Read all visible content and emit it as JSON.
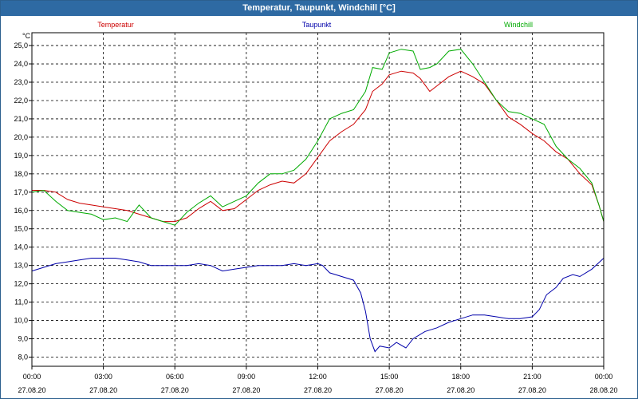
{
  "chart_data": {
    "type": "line",
    "title": "Temperatur, Taupunkt, Windchill [°C]",
    "ylabel": "°C",
    "xlabel": "",
    "ylim": [
      7.5,
      25.7
    ],
    "xlim": [
      0,
      24
    ],
    "grid": true,
    "y_ticks": [
      "8,0",
      "9,0",
      "10,0",
      "11,0",
      "12,0",
      "13,0",
      "14,0",
      "15,0",
      "16,0",
      "17,0",
      "18,0",
      "19,0",
      "20,0",
      "21,0",
      "22,0",
      "23,0",
      "24,0",
      "25,0"
    ],
    "x_ticks": [
      {
        "time": "00:00",
        "date": "27.08.20"
      },
      {
        "time": "03:00",
        "date": "27.08.20"
      },
      {
        "time": "06:00",
        "date": "27.08.20"
      },
      {
        "time": "09:00",
        "date": "27.08.20"
      },
      {
        "time": "12:00",
        "date": "27.08.20"
      },
      {
        "time": "15:00",
        "date": "27.08.20"
      },
      {
        "time": "18:00",
        "date": "27.08.20"
      },
      {
        "time": "21:00",
        "date": "27.08.20"
      },
      {
        "time": "00:00",
        "date": "28.08.20"
      }
    ],
    "series": [
      {
        "name": "Temperatur",
        "color": "#cc0000",
        "points": [
          [
            0,
            17.1
          ],
          [
            0.5,
            17.1
          ],
          [
            1,
            17.0
          ],
          [
            1.5,
            16.6
          ],
          [
            2,
            16.4
          ],
          [
            2.5,
            16.3
          ],
          [
            3,
            16.2
          ],
          [
            3.5,
            16.1
          ],
          [
            4,
            16.0
          ],
          [
            4.5,
            15.8
          ],
          [
            5,
            15.6
          ],
          [
            5.5,
            15.4
          ],
          [
            6,
            15.4
          ],
          [
            6.5,
            15.6
          ],
          [
            7,
            16.1
          ],
          [
            7.5,
            16.5
          ],
          [
            8,
            16.0
          ],
          [
            8.5,
            16.1
          ],
          [
            9,
            16.6
          ],
          [
            9.5,
            17.1
          ],
          [
            10,
            17.4
          ],
          [
            10.5,
            17.6
          ],
          [
            11,
            17.5
          ],
          [
            11.5,
            18.0
          ],
          [
            12,
            18.9
          ],
          [
            12.5,
            19.8
          ],
          [
            13,
            20.3
          ],
          [
            13.5,
            20.7
          ],
          [
            14,
            21.5
          ],
          [
            14.3,
            22.5
          ],
          [
            14.7,
            22.9
          ],
          [
            15,
            23.4
          ],
          [
            15.5,
            23.6
          ],
          [
            16,
            23.5
          ],
          [
            16.3,
            23.2
          ],
          [
            16.7,
            22.5
          ],
          [
            17,
            22.8
          ],
          [
            17.5,
            23.3
          ],
          [
            18,
            23.6
          ],
          [
            18.5,
            23.3
          ],
          [
            19,
            22.9
          ],
          [
            19.5,
            22.0
          ],
          [
            20,
            21.1
          ],
          [
            20.5,
            20.7
          ],
          [
            21,
            20.2
          ],
          [
            21.5,
            19.8
          ],
          [
            22,
            19.2
          ],
          [
            22.5,
            18.8
          ],
          [
            23,
            18.0
          ],
          [
            23.5,
            17.4
          ],
          [
            23.8,
            16.3
          ],
          [
            24,
            15.4
          ]
        ]
      },
      {
        "name": "Taupunkt",
        "color": "#0000aa",
        "points": [
          [
            0,
            12.7
          ],
          [
            0.5,
            12.9
          ],
          [
            1,
            13.1
          ],
          [
            1.5,
            13.2
          ],
          [
            2,
            13.3
          ],
          [
            2.5,
            13.4
          ],
          [
            3,
            13.4
          ],
          [
            3.5,
            13.4
          ],
          [
            4,
            13.3
          ],
          [
            4.5,
            13.2
          ],
          [
            5,
            13.0
          ],
          [
            5.5,
            13.0
          ],
          [
            6,
            13.0
          ],
          [
            6.5,
            13.0
          ],
          [
            7,
            13.1
          ],
          [
            7.5,
            13.0
          ],
          [
            8,
            12.7
          ],
          [
            8.5,
            12.8
          ],
          [
            9,
            12.9
          ],
          [
            9.5,
            13.0
          ],
          [
            10,
            13.0
          ],
          [
            10.5,
            13.0
          ],
          [
            11,
            13.1
          ],
          [
            11.5,
            13.0
          ],
          [
            12,
            13.1
          ],
          [
            12.2,
            13.0
          ],
          [
            12.5,
            12.6
          ],
          [
            13,
            12.4
          ],
          [
            13.5,
            12.2
          ],
          [
            13.8,
            11.5
          ],
          [
            14,
            10.5
          ],
          [
            14.2,
            9.0
          ],
          [
            14.4,
            8.3
          ],
          [
            14.6,
            8.6
          ],
          [
            15,
            8.5
          ],
          [
            15.3,
            8.8
          ],
          [
            15.7,
            8.5
          ],
          [
            16,
            9.0
          ],
          [
            16.5,
            9.4
          ],
          [
            17,
            9.6
          ],
          [
            17.5,
            9.9
          ],
          [
            18,
            10.1
          ],
          [
            18.5,
            10.3
          ],
          [
            19,
            10.3
          ],
          [
            19.5,
            10.2
          ],
          [
            20,
            10.1
          ],
          [
            20.5,
            10.1
          ],
          [
            21,
            10.2
          ],
          [
            21.3,
            10.6
          ],
          [
            21.6,
            11.4
          ],
          [
            22,
            11.8
          ],
          [
            22.3,
            12.3
          ],
          [
            22.7,
            12.5
          ],
          [
            23,
            12.4
          ],
          [
            23.5,
            12.8
          ],
          [
            24,
            13.4
          ]
        ]
      },
      {
        "name": "Windchill",
        "color": "#00aa00",
        "points": [
          [
            0,
            17.0
          ],
          [
            0.5,
            17.1
          ],
          [
            1,
            16.5
          ],
          [
            1.5,
            16.0
          ],
          [
            2,
            15.9
          ],
          [
            2.5,
            15.8
          ],
          [
            3,
            15.5
          ],
          [
            3.5,
            15.6
          ],
          [
            4,
            15.4
          ],
          [
            4.5,
            16.3
          ],
          [
            5,
            15.6
          ],
          [
            5.5,
            15.4
          ],
          [
            6,
            15.2
          ],
          [
            6.5,
            15.9
          ],
          [
            7,
            16.4
          ],
          [
            7.5,
            16.8
          ],
          [
            8,
            16.2
          ],
          [
            8.5,
            16.5
          ],
          [
            9,
            16.8
          ],
          [
            9.5,
            17.5
          ],
          [
            10,
            18.0
          ],
          [
            10.5,
            18.0
          ],
          [
            11,
            18.2
          ],
          [
            11.5,
            18.8
          ],
          [
            12,
            19.8
          ],
          [
            12.5,
            21.0
          ],
          [
            13,
            21.3
          ],
          [
            13.5,
            21.5
          ],
          [
            14,
            22.5
          ],
          [
            14.3,
            23.8
          ],
          [
            14.7,
            23.7
          ],
          [
            15,
            24.6
          ],
          [
            15.5,
            24.8
          ],
          [
            16,
            24.7
          ],
          [
            16.3,
            23.7
          ],
          [
            16.7,
            23.8
          ],
          [
            17,
            24.0
          ],
          [
            17.5,
            24.7
          ],
          [
            18,
            24.8
          ],
          [
            18.5,
            24.0
          ],
          [
            19,
            23.0
          ],
          [
            19.5,
            22.0
          ],
          [
            20,
            21.4
          ],
          [
            20.5,
            21.3
          ],
          [
            21,
            21.0
          ],
          [
            21.5,
            20.7
          ],
          [
            22,
            19.5
          ],
          [
            22.5,
            18.8
          ],
          [
            23,
            18.3
          ],
          [
            23.5,
            17.5
          ],
          [
            23.8,
            16.3
          ],
          [
            24,
            15.4
          ]
        ]
      }
    ]
  }
}
